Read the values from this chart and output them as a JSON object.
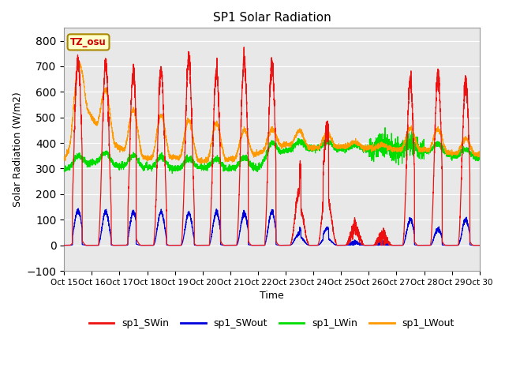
{
  "title": "SP1 Solar Radiation",
  "xlabel": "Time",
  "ylabel": "Solar Radiation (W/m2)",
  "ylim": [
    -100,
    850
  ],
  "yticks": [
    -100,
    0,
    100,
    200,
    300,
    400,
    500,
    600,
    700,
    800
  ],
  "xtick_labels": [
    "Oct 15",
    "Oct 16",
    "Oct 17",
    "Oct 18",
    "Oct 19",
    "Oct 20",
    "Oct 21",
    "Oct 22",
    "Oct 23",
    "Oct 24",
    "Oct 25",
    "Oct 26",
    "Oct 27",
    "Oct 28",
    "Oct 29",
    "Oct 30"
  ],
  "colors": {
    "sp1_SWin": "#ee1111",
    "sp1_SWout": "#0000dd",
    "sp1_LWin": "#00dd00",
    "sp1_LWout": "#ff9900"
  },
  "bg_color": "#e8e8e8",
  "tz_label": "TZ_osu",
  "legend_labels": [
    "sp1_SWin",
    "sp1_SWout",
    "sp1_LWin",
    "sp1_LWout"
  ]
}
